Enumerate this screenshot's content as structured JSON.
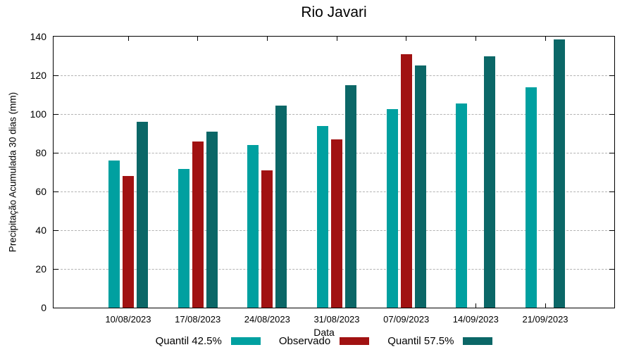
{
  "chart_data": {
    "type": "bar",
    "title": "Rio Javari",
    "xlabel": "Data",
    "ylabel": "Precipitação Acumulada 30 dias (mm)",
    "categories": [
      "10/08/2023",
      "17/08/2023",
      "24/08/2023",
      "31/08/2023",
      "07/09/2023",
      "14/09/2023",
      "21/09/2023"
    ],
    "series": [
      {
        "name": "Quantil 42.5%",
        "color": "#00A0A0",
        "values": [
          76,
          71.5,
          84,
          94,
          102.5,
          105.5,
          114
        ]
      },
      {
        "name": "Observado",
        "color": "#A11212",
        "values": [
          68,
          86,
          71,
          87,
          131,
          null,
          null
        ]
      },
      {
        "name": "Quantil 57.5%",
        "color": "#0B6767",
        "values": [
          96,
          91,
          104.5,
          115,
          125,
          130,
          138.5
        ]
      }
    ],
    "ylim": [
      0,
      140
    ],
    "yticks": [
      0,
      20,
      40,
      60,
      80,
      100,
      120,
      140
    ],
    "grid": {
      "horizontal": true,
      "style": "dashed",
      "color": "#b3b3b3"
    },
    "legend_position": "bottom-outside"
  }
}
